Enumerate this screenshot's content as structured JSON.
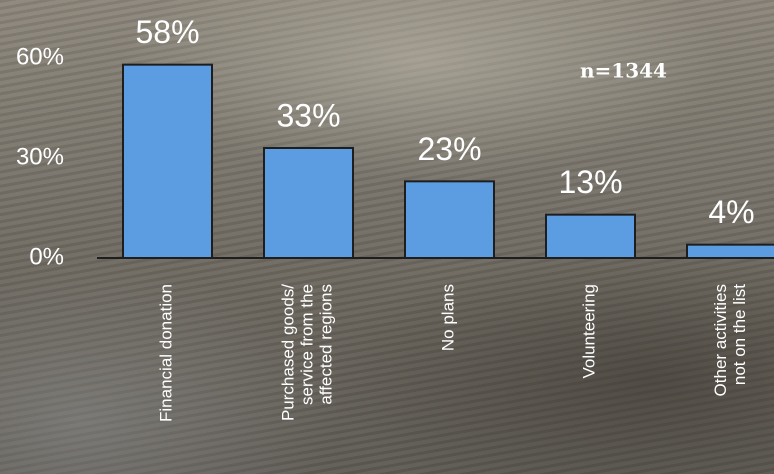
{
  "chart_data": {
    "type": "bar",
    "annotation": "n=1344",
    "categories": [
      "Financial donation",
      "Purchased goods/\nservice from the\naffected regions",
      "No plans",
      "Volunteering",
      "Other activities\nnot on the list"
    ],
    "values": [
      58,
      33,
      23,
      13,
      4
    ],
    "value_labels": [
      "58%",
      "33%",
      "23%",
      "13%",
      "4%"
    ],
    "color": "#5b9de0",
    "ylim": [
      0,
      60
    ],
    "yticks": [
      {
        "value": 0,
        "label": "0%"
      },
      {
        "value": 30,
        "label": "30%"
      },
      {
        "value": 60,
        "label": "60%"
      }
    ]
  }
}
